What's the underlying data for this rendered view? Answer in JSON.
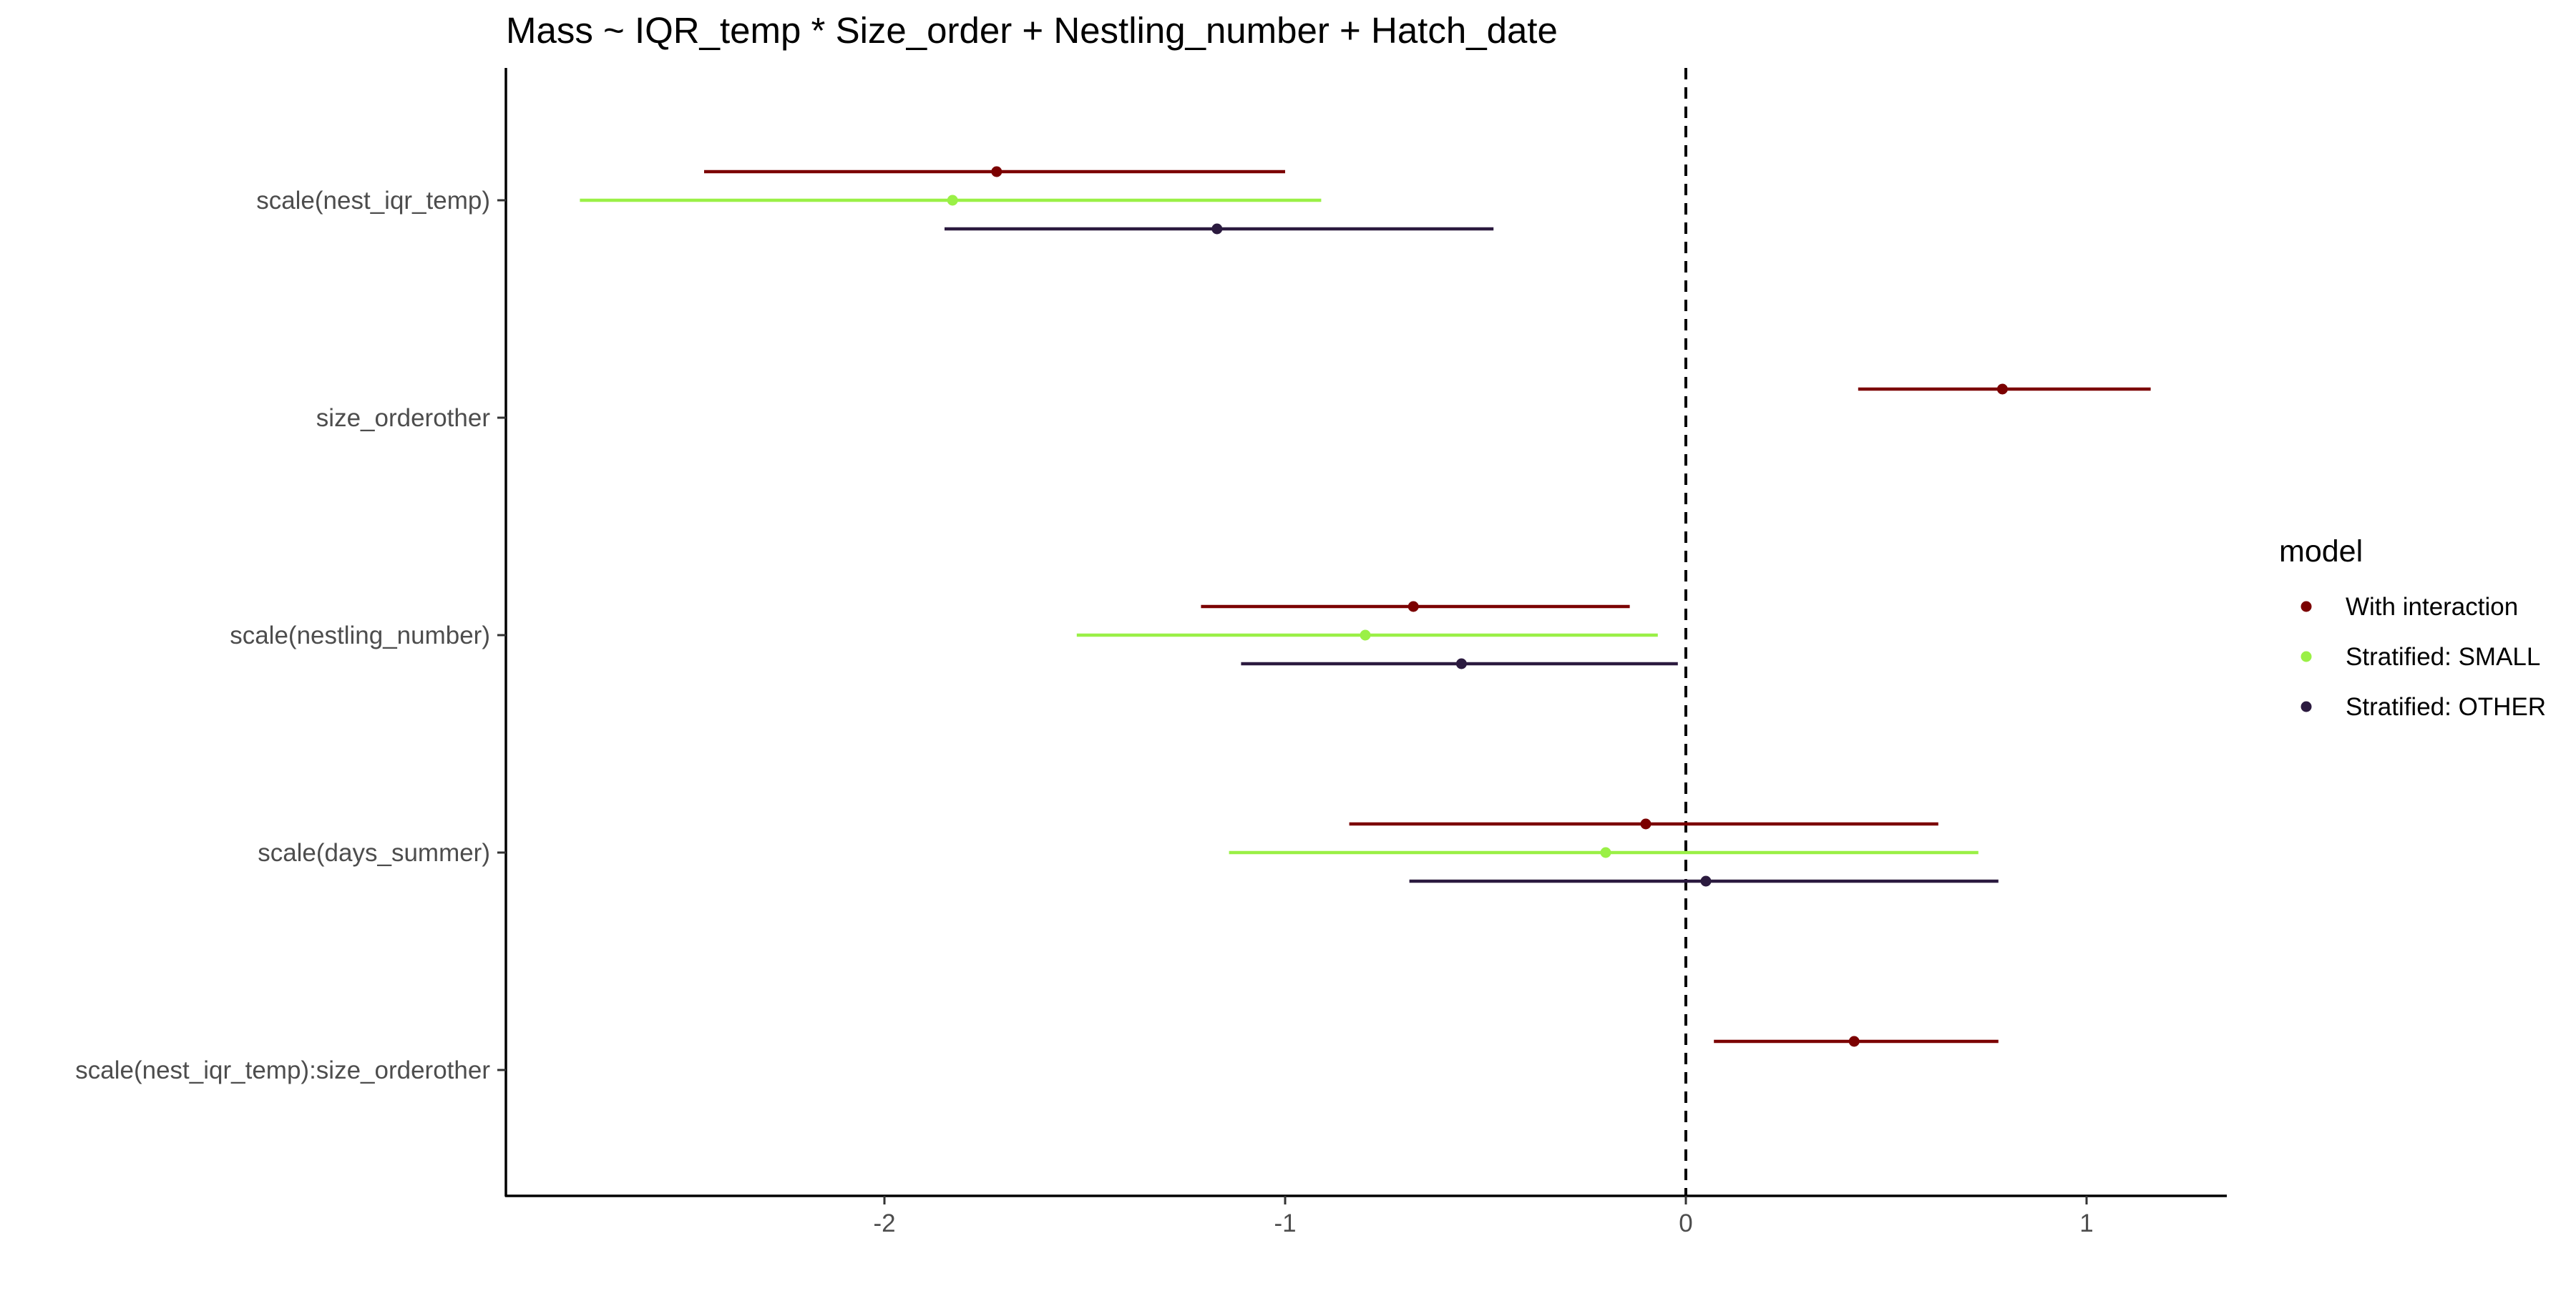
{
  "chart_data": {
    "type": "forest",
    "title": "Mass ~ IQR_temp * Size_order + Nestling_number + Hatch_date",
    "xlabel": "",
    "ylabel": "",
    "xlim": [
      -2.95,
      1.35
    ],
    "x_ticks": [
      -2,
      -1,
      0,
      1
    ],
    "reference_line": 0,
    "terms": [
      "scale(nest_iqr_temp)",
      "size_orderother",
      "scale(nestling_number)",
      "scale(days_summer)",
      "scale(nest_iqr_temp):size_orderother"
    ],
    "legend": {
      "title": "model",
      "position": "right"
    },
    "series": [
      {
        "name": "With interaction",
        "color": "#7B0000",
        "points": [
          {
            "term": "scale(nest_iqr_temp)",
            "estimate": -1.72,
            "low": -2.45,
            "high": -1.0
          },
          {
            "term": "size_orderother",
            "estimate": 0.79,
            "low": 0.43,
            "high": 1.16
          },
          {
            "term": "scale(nestling_number)",
            "estimate": -0.68,
            "low": -1.21,
            "high": -0.14
          },
          {
            "term": "scale(days_summer)",
            "estimate": -0.1,
            "low": -0.84,
            "high": 0.63
          },
          {
            "term": "scale(nest_iqr_temp):size_orderother",
            "estimate": 0.42,
            "low": 0.07,
            "high": 0.78
          }
        ]
      },
      {
        "name": "Stratified: SMALL",
        "color": "#9AF046",
        "points": [
          {
            "term": "scale(nest_iqr_temp)",
            "estimate": -1.83,
            "low": -2.76,
            "high": -0.91
          },
          {
            "term": "scale(nestling_number)",
            "estimate": -0.8,
            "low": -1.52,
            "high": -0.07
          },
          {
            "term": "scale(days_summer)",
            "estimate": -0.2,
            "low": -1.14,
            "high": 0.73
          }
        ]
      },
      {
        "name": "Stratified: OTHER",
        "color": "#2B1A3F",
        "points": [
          {
            "term": "scale(nest_iqr_temp)",
            "estimate": -1.17,
            "low": -1.85,
            "high": -0.48
          },
          {
            "term": "scale(nestling_number)",
            "estimate": -0.56,
            "low": -1.11,
            "high": -0.02
          },
          {
            "term": "scale(days_summer)",
            "estimate": 0.05,
            "low": -0.69,
            "high": 0.78
          }
        ]
      }
    ]
  }
}
